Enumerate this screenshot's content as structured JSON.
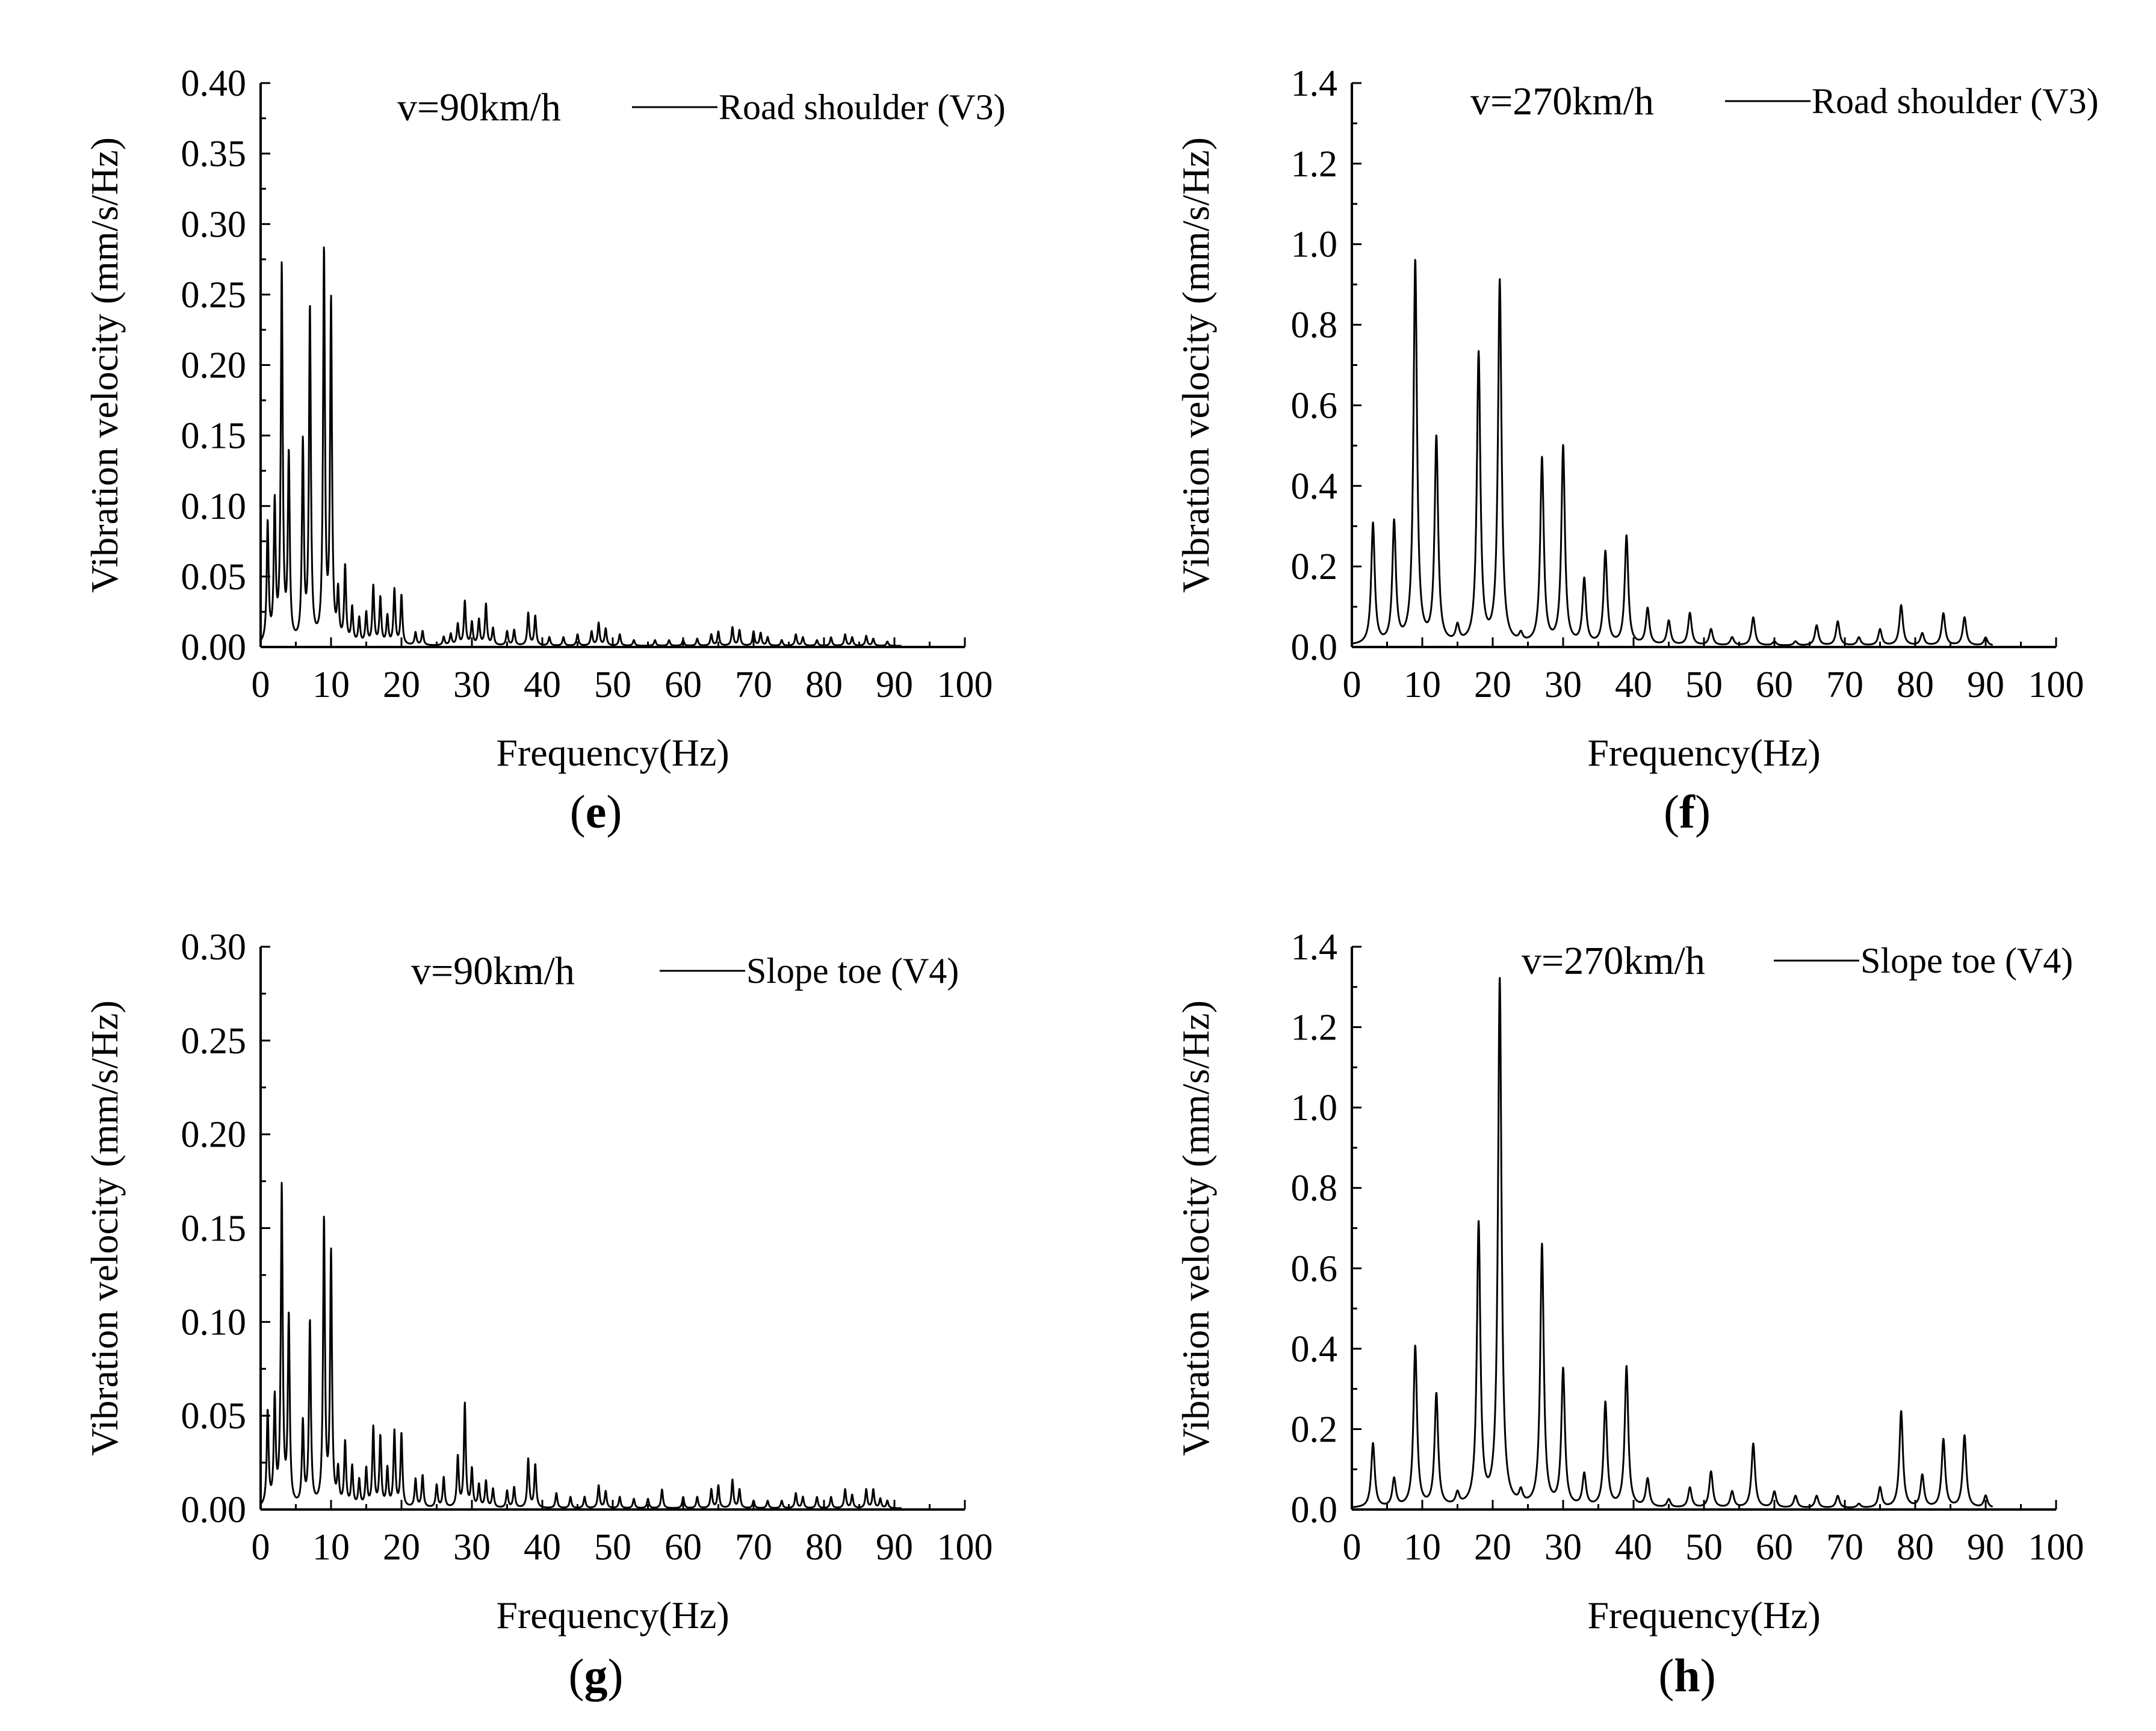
{
  "chart_data": [
    {
      "id": "e",
      "type": "line",
      "title": "",
      "speed_label": "v=90km/h",
      "legend": "Road shoulder (V3)",
      "panel_label": "e",
      "xlabel": "Frequency(Hz)",
      "ylabel": "Vibration velocity (mm/s/Hz)",
      "xlim": [
        0,
        100
      ],
      "ylim": [
        0,
        0.4
      ],
      "xticks": [
        "0",
        "10",
        "20",
        "30",
        "40",
        "50",
        "60",
        "70",
        "80",
        "90",
        "100"
      ],
      "yticks": [
        "0.00",
        "0.05",
        "0.10",
        "0.15",
        "0.20",
        "0.25",
        "0.30",
        "0.35",
        "0.40"
      ],
      "peak_width": 0.16,
      "peaks": [
        [
          1,
          0.085
        ],
        [
          2,
          0.097
        ],
        [
          3,
          0.265
        ],
        [
          4,
          0.131
        ],
        [
          6,
          0.14
        ],
        [
          7,
          0.236
        ],
        [
          9,
          0.276
        ],
        [
          10,
          0.24
        ],
        [
          11,
          0.034
        ],
        [
          12,
          0.054
        ],
        [
          13,
          0.025
        ],
        [
          14,
          0.018
        ],
        [
          15,
          0.022
        ],
        [
          16,
          0.041
        ],
        [
          17,
          0.033
        ],
        [
          18,
          0.02
        ],
        [
          19,
          0.039
        ],
        [
          20,
          0.035
        ],
        [
          22,
          0.009
        ],
        [
          23,
          0.01
        ],
        [
          26,
          0.006
        ],
        [
          27,
          0.008
        ],
        [
          28,
          0.015
        ],
        [
          29,
          0.031
        ],
        [
          30,
          0.016
        ],
        [
          31,
          0.018
        ],
        [
          32,
          0.029
        ],
        [
          33,
          0.012
        ],
        [
          35,
          0.01
        ],
        [
          36,
          0.011
        ],
        [
          38,
          0.023
        ],
        [
          39,
          0.021
        ],
        [
          41,
          0.006
        ],
        [
          43,
          0.006
        ],
        [
          45,
          0.008
        ],
        [
          47,
          0.01
        ],
        [
          48,
          0.016
        ],
        [
          49,
          0.012
        ],
        [
          51,
          0.008
        ],
        [
          53,
          0.004
        ],
        [
          56,
          0.004
        ],
        [
          58,
          0.004
        ],
        [
          60,
          0.004
        ],
        [
          62,
          0.005
        ],
        [
          64,
          0.008
        ],
        [
          65,
          0.01
        ],
        [
          67,
          0.013
        ],
        [
          68,
          0.011
        ],
        [
          70,
          0.01
        ],
        [
          71,
          0.009
        ],
        [
          72,
          0.006
        ],
        [
          74,
          0.004
        ],
        [
          76,
          0.008
        ],
        [
          77,
          0.006
        ],
        [
          79,
          0.004
        ],
        [
          81,
          0.006
        ],
        [
          83,
          0.008
        ],
        [
          84,
          0.006
        ],
        [
          86,
          0.007
        ],
        [
          87,
          0.005
        ],
        [
          89,
          0.003
        ]
      ]
    },
    {
      "id": "f",
      "type": "line",
      "title": "",
      "speed_label": "v=270km/h",
      "legend": "Road shoulder (V3)",
      "panel_label": "f",
      "xlabel": "Frequency(Hz)",
      "ylabel": "Vibration velocity (mm/s/Hz)",
      "xlim": [
        0,
        100
      ],
      "ylim": [
        0,
        1.4
      ],
      "xticks": [
        "0",
        "10",
        "20",
        "30",
        "40",
        "50",
        "60",
        "70",
        "80",
        "90",
        "100"
      ],
      "yticks": [
        "0.0",
        "0.2",
        "0.4",
        "0.6",
        "0.8",
        "1.0",
        "1.2",
        "1.4"
      ],
      "peak_width": 0.3,
      "peaks": [
        [
          3,
          0.3
        ],
        [
          6,
          0.3
        ],
        [
          9,
          0.95
        ],
        [
          12,
          0.51
        ],
        [
          15,
          0.04
        ],
        [
          18,
          0.72
        ],
        [
          21,
          0.9
        ],
        [
          24,
          0.02
        ],
        [
          27,
          0.46
        ],
        [
          30,
          0.49
        ],
        [
          33,
          0.16
        ],
        [
          36,
          0.23
        ],
        [
          39,
          0.27
        ],
        [
          42,
          0.09
        ],
        [
          45,
          0.06
        ],
        [
          48,
          0.08
        ],
        [
          51,
          0.04
        ],
        [
          54,
          0.02
        ],
        [
          57,
          0.07
        ],
        [
          60,
          0.01
        ],
        [
          63,
          0.01
        ],
        [
          66,
          0.05
        ],
        [
          69,
          0.06
        ],
        [
          72,
          0.02
        ],
        [
          75,
          0.04
        ],
        [
          78,
          0.1
        ],
        [
          81,
          0.03
        ],
        [
          84,
          0.08
        ],
        [
          87,
          0.07
        ],
        [
          90,
          0.02
        ]
      ]
    },
    {
      "id": "g",
      "type": "line",
      "title": "",
      "speed_label": "v=90km/h",
      "legend": "Slope toe (V4)",
      "panel_label": "g",
      "xlabel": "Frequency(Hz)",
      "ylabel": "Vibration velocity (mm/s/Hz)",
      "xlim": [
        0,
        100
      ],
      "ylim": [
        0,
        0.3
      ],
      "xticks": [
        "0",
        "10",
        "20",
        "30",
        "40",
        "50",
        "60",
        "70",
        "80",
        "90",
        "100"
      ],
      "yticks": [
        "0.00",
        "0.05",
        "0.10",
        "0.15",
        "0.20",
        "0.25",
        "0.30"
      ],
      "peak_width": 0.16,
      "peaks": [
        [
          1,
          0.05
        ],
        [
          2,
          0.056
        ],
        [
          3,
          0.169
        ],
        [
          4,
          0.1
        ],
        [
          6,
          0.044
        ],
        [
          7,
          0.098
        ],
        [
          9,
          0.152
        ],
        [
          10,
          0.134
        ],
        [
          11,
          0.018
        ],
        [
          12,
          0.034
        ],
        [
          13,
          0.021
        ],
        [
          14,
          0.014
        ],
        [
          15,
          0.02
        ],
        [
          16,
          0.042
        ],
        [
          17,
          0.037
        ],
        [
          18,
          0.02
        ],
        [
          19,
          0.04
        ],
        [
          20,
          0.039
        ],
        [
          22,
          0.015
        ],
        [
          23,
          0.017
        ],
        [
          25,
          0.012
        ],
        [
          26,
          0.016
        ],
        [
          28,
          0.027
        ],
        [
          29,
          0.055
        ],
        [
          30,
          0.02
        ],
        [
          31,
          0.012
        ],
        [
          32,
          0.014
        ],
        [
          33,
          0.01
        ],
        [
          35,
          0.009
        ],
        [
          36,
          0.011
        ],
        [
          38,
          0.026
        ],
        [
          39,
          0.023
        ],
        [
          42,
          0.008
        ],
        [
          44,
          0.006
        ],
        [
          46,
          0.006
        ],
        [
          48,
          0.012
        ],
        [
          49,
          0.009
        ],
        [
          51,
          0.006
        ],
        [
          53,
          0.005
        ],
        [
          55,
          0.005
        ],
        [
          57,
          0.01
        ],
        [
          60,
          0.006
        ],
        [
          62,
          0.006
        ],
        [
          64,
          0.01
        ],
        [
          65,
          0.012
        ],
        [
          67,
          0.015
        ],
        [
          68,
          0.01
        ],
        [
          70,
          0.004
        ],
        [
          72,
          0.004
        ],
        [
          74,
          0.004
        ],
        [
          76,
          0.008
        ],
        [
          77,
          0.006
        ],
        [
          79,
          0.006
        ],
        [
          81,
          0.006
        ],
        [
          83,
          0.01
        ],
        [
          84,
          0.007
        ],
        [
          86,
          0.01
        ],
        [
          87,
          0.01
        ],
        [
          88,
          0.005
        ],
        [
          89,
          0.004
        ]
      ]
    },
    {
      "id": "h",
      "type": "line",
      "title": "",
      "speed_label": "v=270km/h",
      "legend": "Slope toe (V4)",
      "panel_label": "h",
      "xlabel": "Frequency(Hz)",
      "ylabel": "Vibration velocity (mm/s/Hz)",
      "xlim": [
        0,
        100
      ],
      "ylim": [
        0,
        1.4
      ],
      "xticks": [
        "0",
        "10",
        "20",
        "30",
        "40",
        "50",
        "60",
        "70",
        "80",
        "90",
        "100"
      ],
      "yticks": [
        "0.0",
        "0.2",
        "0.4",
        "0.6",
        "0.8",
        "1.0",
        "1.2",
        "1.4"
      ],
      "peak_width": 0.3,
      "peaks": [
        [
          3,
          0.16
        ],
        [
          6,
          0.07
        ],
        [
          9,
          0.4
        ],
        [
          12,
          0.28
        ],
        [
          15,
          0.03
        ],
        [
          18,
          0.7
        ],
        [
          21,
          1.31
        ],
        [
          24,
          0.03
        ],
        [
          27,
          0.65
        ],
        [
          30,
          0.34
        ],
        [
          33,
          0.08
        ],
        [
          36,
          0.26
        ],
        [
          39,
          0.35
        ],
        [
          42,
          0.07
        ],
        [
          45,
          0.02
        ],
        [
          48,
          0.05
        ],
        [
          51,
          0.09
        ],
        [
          54,
          0.04
        ],
        [
          57,
          0.16
        ],
        [
          60,
          0.04
        ],
        [
          63,
          0.03
        ],
        [
          66,
          0.03
        ],
        [
          69,
          0.03
        ],
        [
          72,
          0.01
        ],
        [
          75,
          0.05
        ],
        [
          78,
          0.24
        ],
        [
          81,
          0.08
        ],
        [
          84,
          0.17
        ],
        [
          87,
          0.18
        ],
        [
          90,
          0.03
        ]
      ]
    }
  ]
}
